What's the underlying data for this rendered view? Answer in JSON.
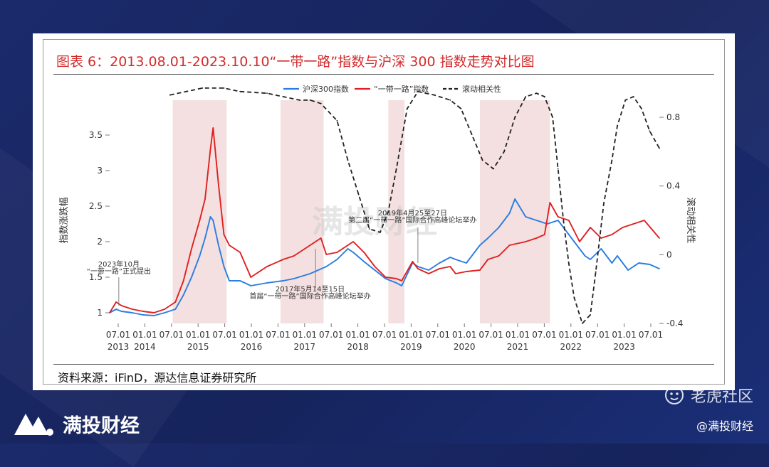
{
  "title": "图表 6：2013.08.01-2023.10.10“一带一路”指数与沪深 300 指数走势对比图",
  "source": "资料来源：iFinD，源达信息证券研究所",
  "footer": {
    "brand": "满投财经",
    "community": "老虎社区",
    "handle": "@满投财经"
  },
  "watermark": "满投财经",
  "colors": {
    "accent": "#d42a2a",
    "hs300": "#2a7de1",
    "belt_road": "#e02020",
    "corr": "#222222",
    "shade": "#f0d5d5"
  },
  "chart_data": {
    "type": "line",
    "legend_position": "top-center",
    "ylabel_left": "指数涨跌幅",
    "ylabel_right": "滚动相关性",
    "y_left_ticks": [
      "1",
      "1.5",
      "2",
      "2.5",
      "3",
      "3.5"
    ],
    "y_left_range": [
      0.85,
      3.75
    ],
    "y_right_ticks": [
      "-0.4",
      "0",
      "0.4",
      "0.8"
    ],
    "y_right_range": [
      -0.4,
      0.8
    ],
    "x_range": [
      2013.58,
      2023.78
    ],
    "x_ticks": [
      {
        "top": "07.01",
        "bottom": "2013"
      },
      {
        "top": "01.01",
        "bottom": "2014"
      },
      {
        "top": "07.01",
        "bottom": ""
      },
      {
        "top": "01.01",
        "bottom": "2015"
      },
      {
        "top": "07.01",
        "bottom": ""
      },
      {
        "top": "01.01",
        "bottom": "2016"
      },
      {
        "top": "07.01",
        "bottom": ""
      },
      {
        "top": "01.01",
        "bottom": "2017"
      },
      {
        "top": "07.01",
        "bottom": ""
      },
      {
        "top": "01.01",
        "bottom": "2018"
      },
      {
        "top": "07.01",
        "bottom": ""
      },
      {
        "top": "01.01",
        "bottom": "2019"
      },
      {
        "top": "07.01",
        "bottom": ""
      },
      {
        "top": "01.01",
        "bottom": "2020"
      },
      {
        "top": "07.01",
        "bottom": ""
      },
      {
        "top": "01.01",
        "bottom": "2021"
      },
      {
        "top": "07.01",
        "bottom": ""
      },
      {
        "top": "01.01",
        "bottom": "2022"
      },
      {
        "top": "07.01",
        "bottom": ""
      },
      {
        "top": "01.01",
        "bottom": "2023"
      },
      {
        "top": "07.01",
        "bottom": ""
      }
    ],
    "shaded_periods": [
      [
        2014.75,
        2015.75
      ],
      [
        2016.75,
        2017.55
      ],
      [
        2018.75,
        2019.05
      ],
      [
        2020.45,
        2021.75
      ]
    ],
    "annotations": [
      {
        "text": "2023年10月",
        "x": 2013.75,
        "y": 1.65
      },
      {
        "text": "“一带一路”正式提出",
        "x": 2013.75,
        "y": 1.55
      },
      {
        "text": "2017年5月14至15日",
        "x": 2017.3,
        "y": 1.3
      },
      {
        "text": "首届“一带一路”国际合作高峰论坛举办",
        "x": 2017.3,
        "y": 1.2
      },
      {
        "text": "2019年4月25至27日",
        "x": 2019.2,
        "y": 2.37
      },
      {
        "text": "第二届“一带一路”国际合作高峰论坛举办",
        "x": 2019.2,
        "y": 2.27
      }
    ],
    "series": [
      {
        "name": "沪深300指数",
        "axis": "left",
        "x": [
          2013.58,
          2013.7,
          2013.8,
          2014.0,
          2014.2,
          2014.4,
          2014.6,
          2014.8,
          2014.95,
          2015.1,
          2015.25,
          2015.35,
          2015.45,
          2015.5,
          2015.6,
          2015.7,
          2015.8,
          2016.0,
          2016.2,
          2016.5,
          2016.8,
          2017.0,
          2017.3,
          2017.6,
          2017.8,
          2018.0,
          2018.1,
          2018.3,
          2018.5,
          2018.7,
          2018.9,
          2019.0,
          2019.2,
          2019.3,
          2019.5,
          2019.7,
          2019.9,
          2020.0,
          2020.2,
          2020.45,
          2020.6,
          2020.8,
          2021.0,
          2021.1,
          2021.3,
          2021.5,
          2021.7,
          2021.9,
          2022.0,
          2022.2,
          2022.4,
          2022.5,
          2022.7,
          2022.9,
          2023.0,
          2023.2,
          2023.4,
          2023.6,
          2023.78
        ],
        "values": [
          1.0,
          1.05,
          1.02,
          1.0,
          0.97,
          0.96,
          1.0,
          1.05,
          1.25,
          1.5,
          1.8,
          2.05,
          2.35,
          2.3,
          1.95,
          1.65,
          1.45,
          1.45,
          1.38,
          1.42,
          1.45,
          1.48,
          1.55,
          1.65,
          1.75,
          1.9,
          1.85,
          1.72,
          1.6,
          1.48,
          1.42,
          1.38,
          1.7,
          1.65,
          1.6,
          1.7,
          1.78,
          1.75,
          1.7,
          1.95,
          2.05,
          2.2,
          2.4,
          2.6,
          2.35,
          2.3,
          2.25,
          2.3,
          2.2,
          2.0,
          1.8,
          1.75,
          1.9,
          1.7,
          1.8,
          1.6,
          1.7,
          1.68,
          1.62
        ]
      },
      {
        "name": "“一带一路”指数",
        "axis": "left",
        "x": [
          2013.58,
          2013.7,
          2013.8,
          2014.0,
          2014.2,
          2014.4,
          2014.6,
          2014.8,
          2014.95,
          2015.1,
          2015.25,
          2015.35,
          2015.45,
          2015.5,
          2015.55,
          2015.6,
          2015.7,
          2015.8,
          2016.0,
          2016.2,
          2016.5,
          2016.8,
          2017.0,
          2017.3,
          2017.5,
          2017.6,
          2017.8,
          2018.0,
          2018.1,
          2018.3,
          2018.5,
          2018.7,
          2018.9,
          2019.0,
          2019.2,
          2019.3,
          2019.5,
          2019.7,
          2019.9,
          2020.0,
          2020.2,
          2020.45,
          2020.6,
          2020.8,
          2021.0,
          2021.3,
          2021.5,
          2021.65,
          2021.75,
          2021.9,
          2022.1,
          2022.3,
          2022.5,
          2022.7,
          2022.9,
          2023.1,
          2023.3,
          2023.5,
          2023.78
        ],
        "values": [
          1.0,
          1.15,
          1.1,
          1.05,
          1.02,
          1.0,
          1.05,
          1.15,
          1.45,
          1.9,
          2.3,
          2.6,
          3.3,
          3.6,
          3.2,
          2.8,
          2.1,
          1.95,
          1.85,
          1.5,
          1.65,
          1.75,
          1.8,
          1.95,
          2.05,
          1.82,
          1.85,
          1.95,
          2.0,
          1.85,
          1.65,
          1.5,
          1.48,
          1.45,
          1.72,
          1.62,
          1.55,
          1.62,
          1.65,
          1.55,
          1.58,
          1.6,
          1.75,
          1.8,
          1.95,
          2.0,
          2.05,
          2.1,
          2.55,
          2.35,
          2.3,
          2.0,
          2.2,
          2.05,
          2.1,
          2.2,
          2.25,
          2.3,
          2.05
        ]
      },
      {
        "name": "滚动相关性",
        "axis": "right",
        "x": [
          2014.7,
          2015.0,
          2015.3,
          2015.7,
          2016.0,
          2016.5,
          2016.8,
          2017.1,
          2017.3,
          2017.5,
          2017.8,
          2018.0,
          2018.2,
          2018.4,
          2018.6,
          2018.75,
          2018.9,
          2019.1,
          2019.3,
          2019.6,
          2019.9,
          2020.1,
          2020.3,
          2020.5,
          2020.7,
          2020.9,
          2021.1,
          2021.3,
          2021.5,
          2021.65,
          2021.8,
          2021.9,
          2022.0,
          2022.1,
          2022.2,
          2022.35,
          2022.5,
          2022.6,
          2022.75,
          2022.9,
          2023.0,
          2023.15,
          2023.3,
          2023.45,
          2023.6,
          2023.78
        ],
        "values": [
          0.93,
          0.95,
          0.97,
          0.97,
          0.95,
          0.94,
          0.92,
          0.9,
          0.9,
          0.88,
          0.78,
          0.55,
          0.35,
          0.15,
          0.13,
          0.25,
          0.5,
          0.85,
          0.95,
          0.93,
          0.9,
          0.85,
          0.7,
          0.55,
          0.5,
          0.6,
          0.8,
          0.92,
          0.94,
          0.92,
          0.8,
          0.5,
          0.2,
          -0.05,
          -0.25,
          -0.4,
          -0.35,
          -0.1,
          0.3,
          0.55,
          0.75,
          0.9,
          0.92,
          0.85,
          0.72,
          0.62
        ]
      }
    ]
  }
}
